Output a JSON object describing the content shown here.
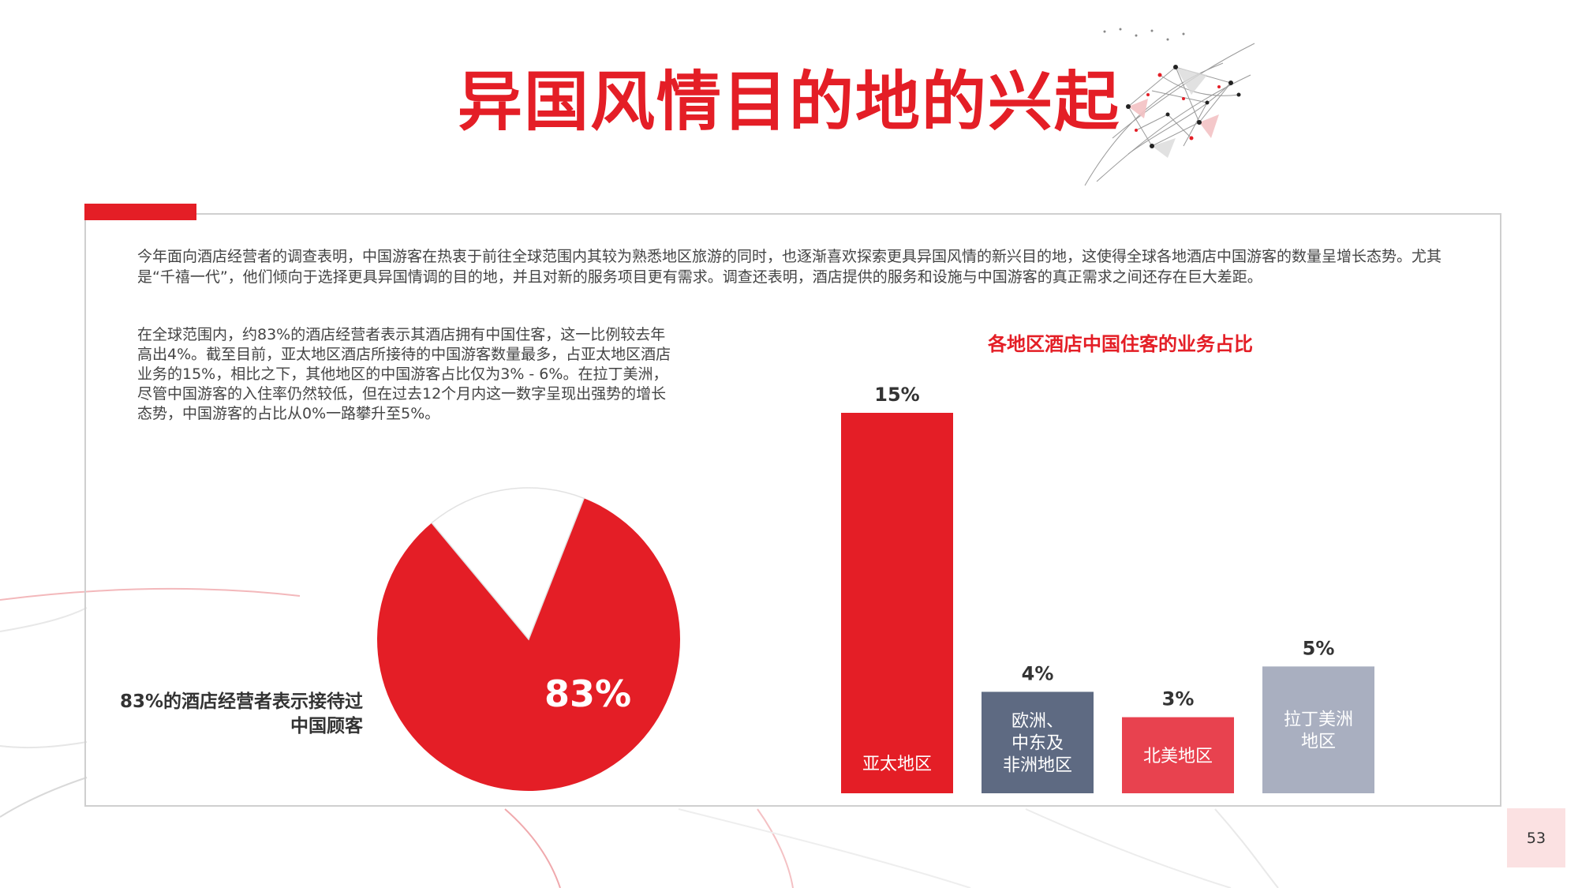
{
  "page": {
    "title": "异国风情目的地的兴起",
    "page_number": "53"
  },
  "text": {
    "intro": "今年面向酒店经营者的调查表明，中国游客在热衷于前往全球范围内其较为熟悉地区旅游的同时，也逐渐喜欢探索更具异国风情的新兴目的地，这使得全球各地酒店中国游客的数量呈增长态势。尤其是“千禧一代”，他们倾向于选择更具异国情调的目的地，并且对新的服务项目更有需求。调查还表明，酒店提供的服务和设施与中国游客的真正需求之间还存在巨大差距。",
    "para2": "在全球范围内，约83%的酒店经营者表示其酒店拥有中国住客，这一比例较去年高出4%。截至目前，亚太地区酒店所接待的中国游客数量最多，占亚太地区酒店业务的15%，相比之下，其他地区的中国游客占比仅为3% - 6%。在拉丁美洲，尽管中国游客的入住率仍然较低，但在过去12个月内这一数字呈现出强势的增长态势，中国游客的占比从0%一路攀升至5%。"
  },
  "colors": {
    "brand_red": "#e41e26",
    "slate": "#5e6a82",
    "light_red": "#e8424f",
    "gray_blue": "#a9afc0"
  },
  "chart_data": [
    {
      "type": "pie",
      "caption": "83%的酒店经营者表示接待过中国顾客",
      "slices": [
        {
          "value": 83,
          "label": "83%",
          "color": "#e41e26"
        },
        {
          "value": 17,
          "label": "",
          "color": "#ffffff"
        }
      ]
    },
    {
      "type": "bar",
      "title": "各地区酒店中国住客的业务占比",
      "categories": [
        "亚太地区",
        "欧洲、中东及非洲地区",
        "北美地区",
        "拉丁美洲地区"
      ],
      "category_lines": [
        [
          "亚太地区"
        ],
        [
          "欧洲、",
          "中东及",
          "非洲地区"
        ],
        [
          "北美地区"
        ],
        [
          "拉丁美洲",
          "地区"
        ]
      ],
      "values": [
        15,
        4,
        3,
        5
      ],
      "value_labels": [
        "15%",
        "4%",
        "3%",
        "5%"
      ],
      "colors": [
        "#e41e26",
        "#5e6a82",
        "#e8424f",
        "#a9afc0"
      ],
      "ylim": [
        0,
        15
      ],
      "grid": false,
      "xlabel": "",
      "ylabel": ""
    }
  ]
}
